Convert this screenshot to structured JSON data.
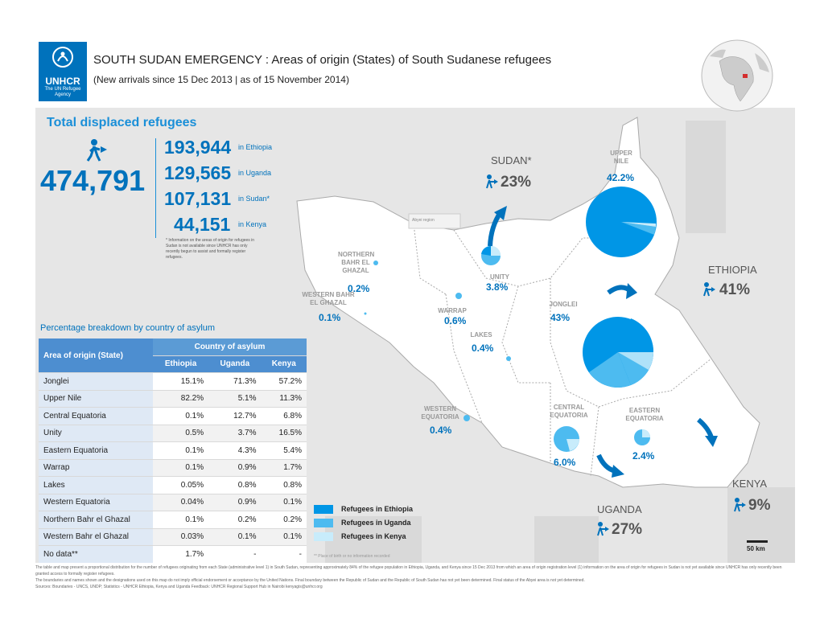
{
  "header": {
    "logo_label": "UNHCR",
    "logo_sub": "The UN Refugee Agency",
    "title": "SOUTH SUDAN EMERGENCY : Areas of origin (States) of South Sudanese refugees",
    "subtitle": "(New arrivals since 15 Dec 2013 | as of 15 November 2014)"
  },
  "totals": {
    "heading": "Total displaced refugees",
    "total": "474,791",
    "countries": [
      {
        "value": "193,944",
        "label": "in Ethiopia"
      },
      {
        "value": "129,565",
        "label": "in Uganda"
      },
      {
        "value": "107,131",
        "label": "in Sudan*"
      },
      {
        "value": "44,151",
        "label": "in Kenya"
      }
    ],
    "footnote": "* Information on the areas of origin for refugees in Sudan is not available since UNHCR has only recently begun to assist and formally register refugees."
  },
  "table": {
    "title": "Percentage breakdown by country of asylum",
    "header_area": "Area of origin (State)",
    "header_group": "Country of asylum",
    "columns": [
      "Ethiopia",
      "Uganda",
      "Kenya"
    ],
    "rows": [
      {
        "state": "Jonglei",
        "ethiopia": "15.1%",
        "uganda": "71.3%",
        "kenya": "57.2%"
      },
      {
        "state": "Upper Nile",
        "ethiopia": "82.2%",
        "uganda": "5.1%",
        "kenya": "11.3%"
      },
      {
        "state": "Central Equatoria",
        "ethiopia": "0.1%",
        "uganda": "12.7%",
        "kenya": "6.8%"
      },
      {
        "state": "Unity",
        "ethiopia": "0.5%",
        "uganda": "3.7%",
        "kenya": "16.5%"
      },
      {
        "state": "Eastern Equatoria",
        "ethiopia": "0.1%",
        "uganda": "4.3%",
        "kenya": "5.4%"
      },
      {
        "state": "Warrap",
        "ethiopia": "0.1%",
        "uganda": "0.9%",
        "kenya": "1.7%"
      },
      {
        "state": "Lakes",
        "ethiopia": "0.05%",
        "uganda": "0.8%",
        "kenya": "0.8%"
      },
      {
        "state": "Western Equatoria",
        "ethiopia": "0.04%",
        "uganda": "0.9%",
        "kenya": "0.1%"
      },
      {
        "state": "Northern Bahr el Ghazal",
        "ethiopia": "0.1%",
        "uganda": "0.2%",
        "kenya": "0.2%"
      },
      {
        "state": "Western Bahr el Ghazal",
        "ethiopia": "0.03%",
        "uganda": "0.1%",
        "kenya": "0.1%"
      },
      {
        "state": "No data**",
        "ethiopia": "1.7%",
        "uganda": "-",
        "kenya": "-"
      }
    ]
  },
  "map": {
    "abyei": "Abyei region",
    "states": [
      {
        "name": "UPPER NILE",
        "pct": "42.2%"
      },
      {
        "name": "NORTHERN BAHR EL GHAZAL",
        "pct": "0.2%"
      },
      {
        "name": "UNITY",
        "pct": "3.8%"
      },
      {
        "name": "WESTERN BAHR EL GHAZAL",
        "pct": "0.1%"
      },
      {
        "name": "WARRAP",
        "pct": "0.6%"
      },
      {
        "name": "JONGLEI",
        "pct": "43%"
      },
      {
        "name": "LAKES",
        "pct": "0.4%"
      },
      {
        "name": "WESTERN EQUATORIA",
        "pct": "0.4%"
      },
      {
        "name": "CENTRAL EQUATORIA",
        "pct": "6.0%"
      },
      {
        "name": "EASTERN EQUATORIA",
        "pct": "2.4%"
      }
    ],
    "neighbours": [
      {
        "name": "SUDAN*",
        "pct": "23%"
      },
      {
        "name": "ETHIOPIA",
        "pct": "41%"
      },
      {
        "name": "UGANDA",
        "pct": "27%"
      },
      {
        "name": "KENYA",
        "pct": "9%"
      }
    ],
    "legend": [
      {
        "label": "Refugees in Ethiopia",
        "color": "#0096e6"
      },
      {
        "label": "Refugees in Uganda",
        "color": "#4dbbf0"
      },
      {
        "label": "Refugees in Kenya",
        "color": "#c8ecfb"
      }
    ],
    "scale_label": "50 km",
    "map_note": "** Place of birth or no information recorded"
  },
  "notes": {
    "line1": "The table and map present a proportional distribution for the number of refugees originating from each State (administrative level 1) in South Sudan, representing approximately 84% of the refugee population in Ethiopia, Uganda, and Kenya since 15 Dec 2013 from which an area of origin registration level (1) information on the area of origin for refugees in Sudan is not yet available since UNHCR has only recently been granted access to formally register refugees.",
    "line2": "The boundaries and names shown and the designations used on this map do not imply official endorsement or acceptance by the United Nations. Final boundary between the Republic of Sudan and the Republic of South Sudan has not yet been determined. Final status of the Abyei area is not yet determined.",
    "line3": "Sources: Boundaries - UNCS, UNDP; Statistics - UNHCR Ethiopia, Kenya and Uganda      Feedback: UNHCR Regional Support Hub in Nairobi kenyagis@unhcr.org"
  }
}
